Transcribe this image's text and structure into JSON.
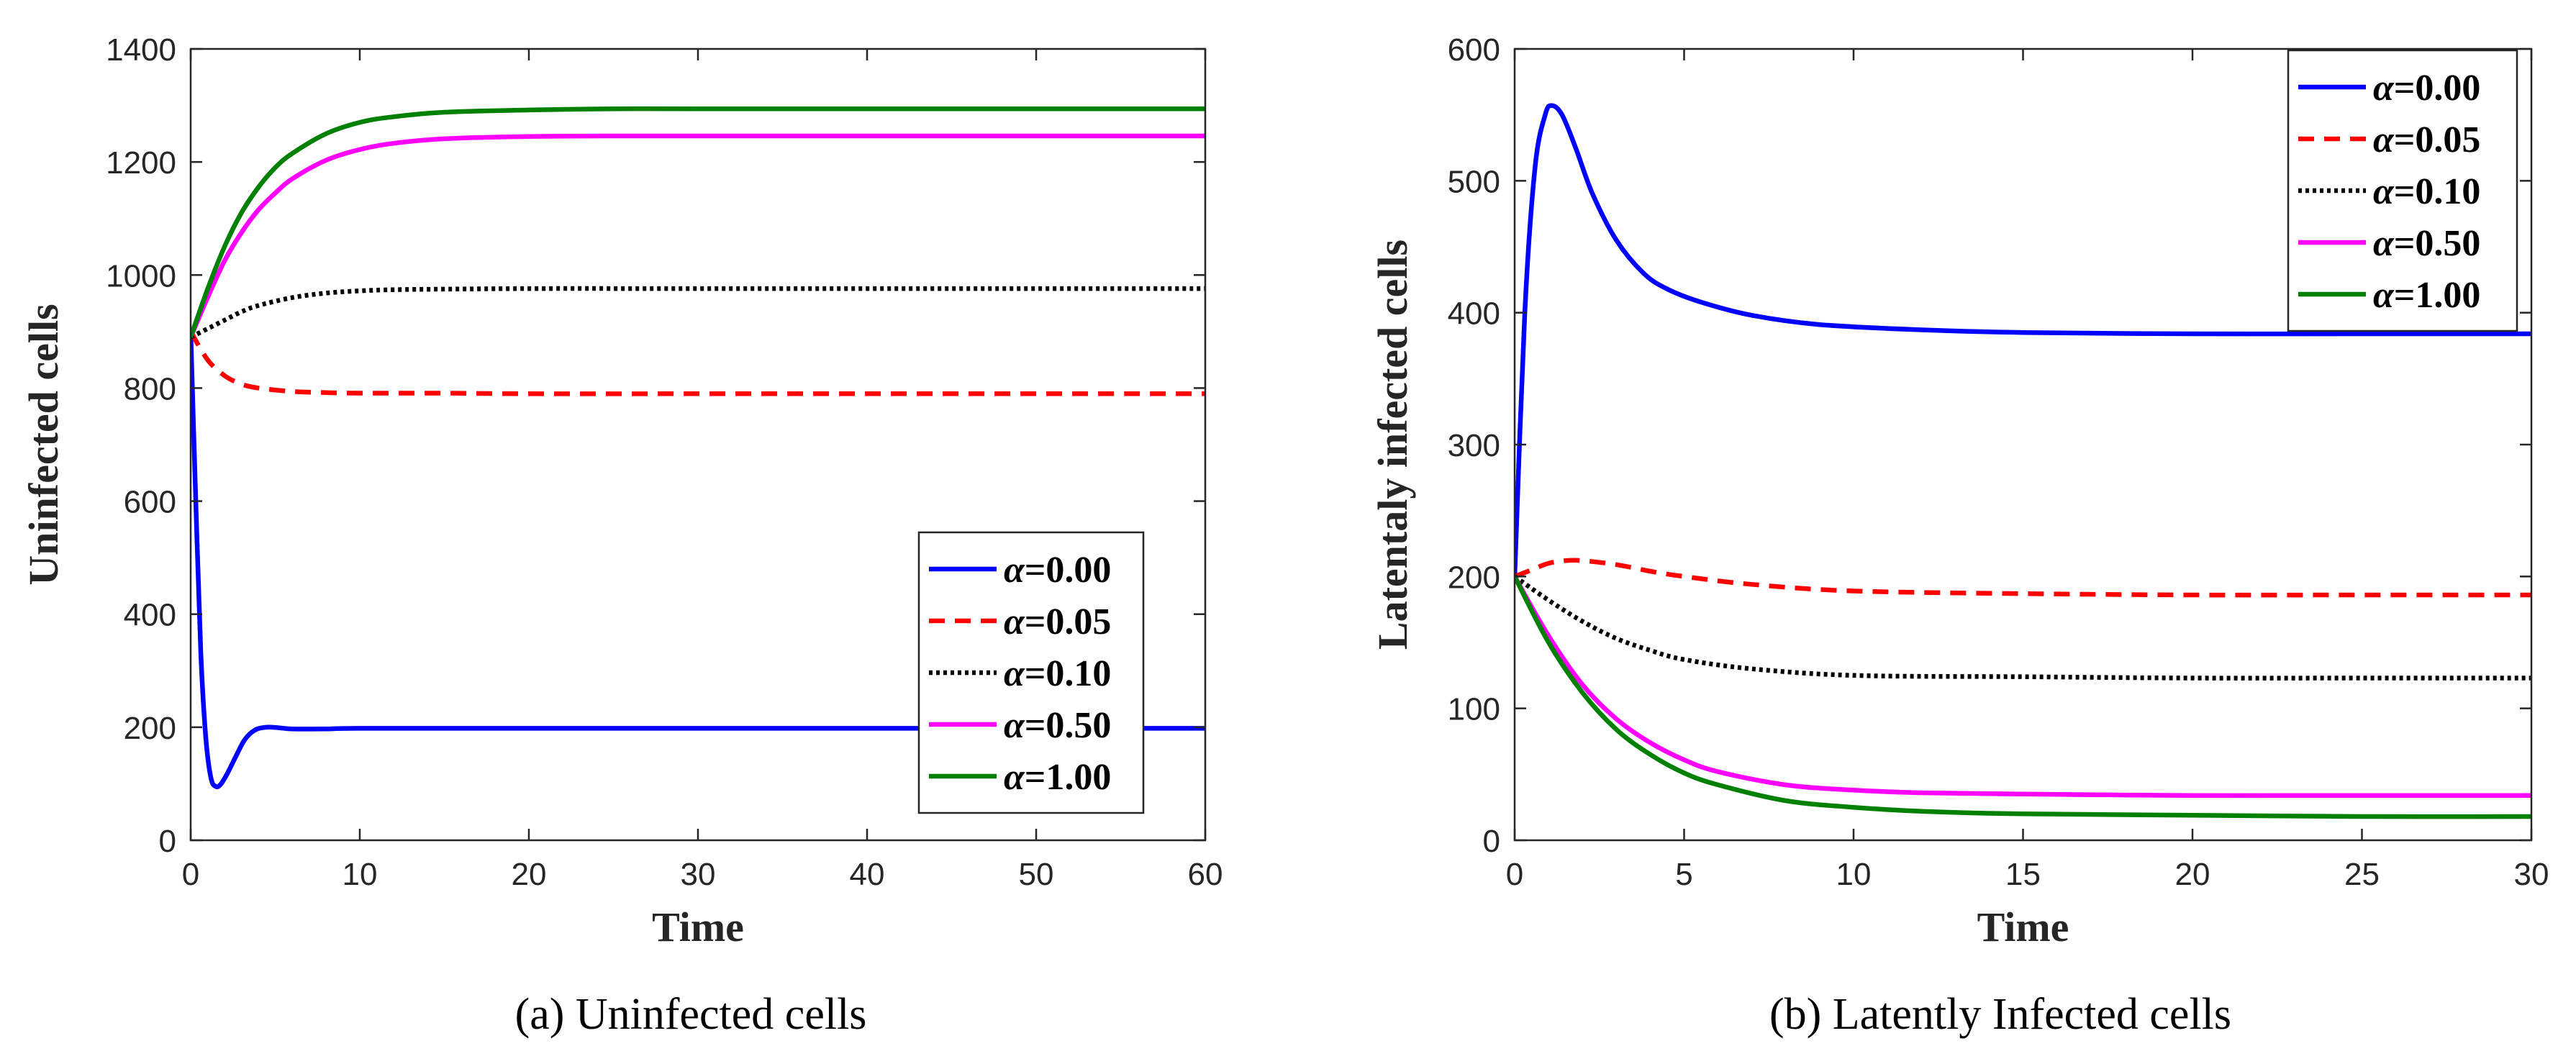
{
  "figure": {
    "captions": [
      "(a)  Uninfected cells",
      "(b)  Latently Infected cells"
    ]
  },
  "chart_data": [
    {
      "type": "line",
      "title": "",
      "caption": "(a)  Uninfected cells",
      "xlabel": "Time",
      "ylabel": "Uninfected cells",
      "xlim": [
        0,
        60
      ],
      "ylim": [
        0,
        1400
      ],
      "xticks": [
        0,
        10,
        20,
        30,
        40,
        50,
        60
      ],
      "yticks": [
        0,
        200,
        400,
        600,
        800,
        1000,
        1200,
        1400
      ],
      "grid": false,
      "legend_position": "bottom-right",
      "series": [
        {
          "name": "α=0.00",
          "alpha": "0.00",
          "color": "#0000ff",
          "style": "solid",
          "x": [
            0,
            0.3,
            0.6,
            0.9,
            1.2,
            1.5,
            1.8,
            2.2,
            2.7,
            3.2,
            3.8,
            4.5,
            5.2,
            6,
            8,
            10,
            20,
            30,
            40,
            50,
            60
          ],
          "y": [
            900,
            600,
            330,
            180,
            110,
            95,
            100,
            120,
            150,
            178,
            195,
            200,
            199,
            197,
            197,
            198,
            198,
            198,
            198,
            198,
            198
          ]
        },
        {
          "name": "α=0.05",
          "alpha": "0.05",
          "color": "#ff0000",
          "style": "dashed",
          "x": [
            0,
            1,
            2,
            3,
            4,
            6,
            8,
            10,
            15,
            20,
            30,
            40,
            50,
            60
          ],
          "y": [
            900,
            850,
            822,
            807,
            800,
            794,
            792,
            791,
            791,
            790,
            790,
            790,
            790,
            790
          ]
        },
        {
          "name": "α=0.10",
          "alpha": "0.10",
          "color": "#000000",
          "style": "dotted",
          "x": [
            0,
            1,
            2,
            3,
            4,
            6,
            8,
            10,
            12,
            15,
            20,
            30,
            40,
            50,
            60
          ],
          "y": [
            890,
            905,
            920,
            935,
            946,
            960,
            968,
            972,
            974,
            975,
            976,
            976,
            976,
            976,
            976
          ]
        },
        {
          "name": "α=0.50",
          "alpha": "0.50",
          "color": "#ff00ff",
          "style": "solid",
          "x": [
            0,
            1,
            2,
            3,
            4,
            5,
            6,
            8,
            10,
            12,
            15,
            20,
            25,
            30,
            40,
            50,
            60
          ],
          "y": [
            890,
            960,
            1025,
            1075,
            1115,
            1145,
            1170,
            1203,
            1222,
            1233,
            1241,
            1245,
            1246,
            1246,
            1246,
            1246,
            1246
          ]
        },
        {
          "name": "α=1.00",
          "alpha": "1.00",
          "color": "#008000",
          "style": "solid",
          "x": [
            0,
            1,
            2,
            3,
            4,
            5,
            6,
            8,
            10,
            12,
            15,
            20,
            25,
            30,
            40,
            50,
            60
          ],
          "y": [
            890,
            975,
            1050,
            1110,
            1155,
            1190,
            1215,
            1250,
            1270,
            1280,
            1288,
            1292,
            1294,
            1294,
            1294,
            1294,
            1294
          ]
        }
      ]
    },
    {
      "type": "line",
      "title": "",
      "caption": "(b)  Latently Infected cells",
      "xlabel": "Time",
      "ylabel": "Latentaly infected cells",
      "xlim": [
        0,
        30
      ],
      "ylim": [
        0,
        600
      ],
      "xticks": [
        0,
        5,
        10,
        15,
        20,
        25,
        30
      ],
      "yticks": [
        0,
        100,
        200,
        300,
        400,
        500,
        600
      ],
      "grid": false,
      "legend_position": "top-right",
      "series": [
        {
          "name": "α=0.00",
          "alpha": "0.00",
          "color": "#0000ff",
          "style": "solid",
          "x": [
            0,
            0.3,
            0.6,
            0.9,
            1.1,
            1.4,
            1.8,
            2.3,
            3,
            3.8,
            4.5,
            5.5,
            7,
            9,
            12,
            15,
            20,
            25,
            30
          ],
          "y": [
            200,
            400,
            510,
            550,
            557,
            550,
            525,
            490,
            455,
            430,
            418,
            408,
            398,
            391,
            387,
            385,
            384,
            384,
            384
          ]
        },
        {
          "name": "α=0.05",
          "alpha": "0.05",
          "color": "#ff0000",
          "style": "dashed",
          "x": [
            0,
            0.5,
            1,
            1.5,
            2,
            3,
            4,
            5,
            7,
            10,
            15,
            20,
            25,
            30
          ],
          "y": [
            200,
            205,
            210,
            212,
            212,
            209,
            204,
            200,
            194,
            189,
            187,
            186,
            186,
            186
          ]
        },
        {
          "name": "α=0.10",
          "alpha": "0.10",
          "color": "#000000",
          "style": "dotted",
          "x": [
            0,
            1,
            2,
            3,
            4,
            5,
            7,
            10,
            15,
            20,
            25,
            30
          ],
          "y": [
            200,
            182,
            166,
            153,
            144,
            137,
            130,
            125,
            124,
            123,
            123,
            123
          ]
        },
        {
          "name": "α=0.50",
          "alpha": "0.50",
          "color": "#ff00ff",
          "style": "solid",
          "x": [
            0,
            1,
            2,
            3,
            4,
            5,
            6,
            8,
            10,
            12,
            15,
            20,
            25,
            30
          ],
          "y": [
            200,
            155,
            118,
            92,
            74,
            61,
            52,
            42,
            38,
            36,
            35,
            34,
            34,
            34
          ]
        },
        {
          "name": "α=1.00",
          "alpha": "1.00",
          "color": "#008000",
          "style": "solid",
          "x": [
            0,
            1,
            2,
            3,
            4,
            5,
            6,
            8,
            10,
            12,
            15,
            20,
            25,
            30
          ],
          "y": [
            200,
            150,
            112,
            84,
            65,
            51,
            42,
            30,
            25,
            22,
            20,
            19,
            18,
            18
          ]
        }
      ]
    }
  ]
}
